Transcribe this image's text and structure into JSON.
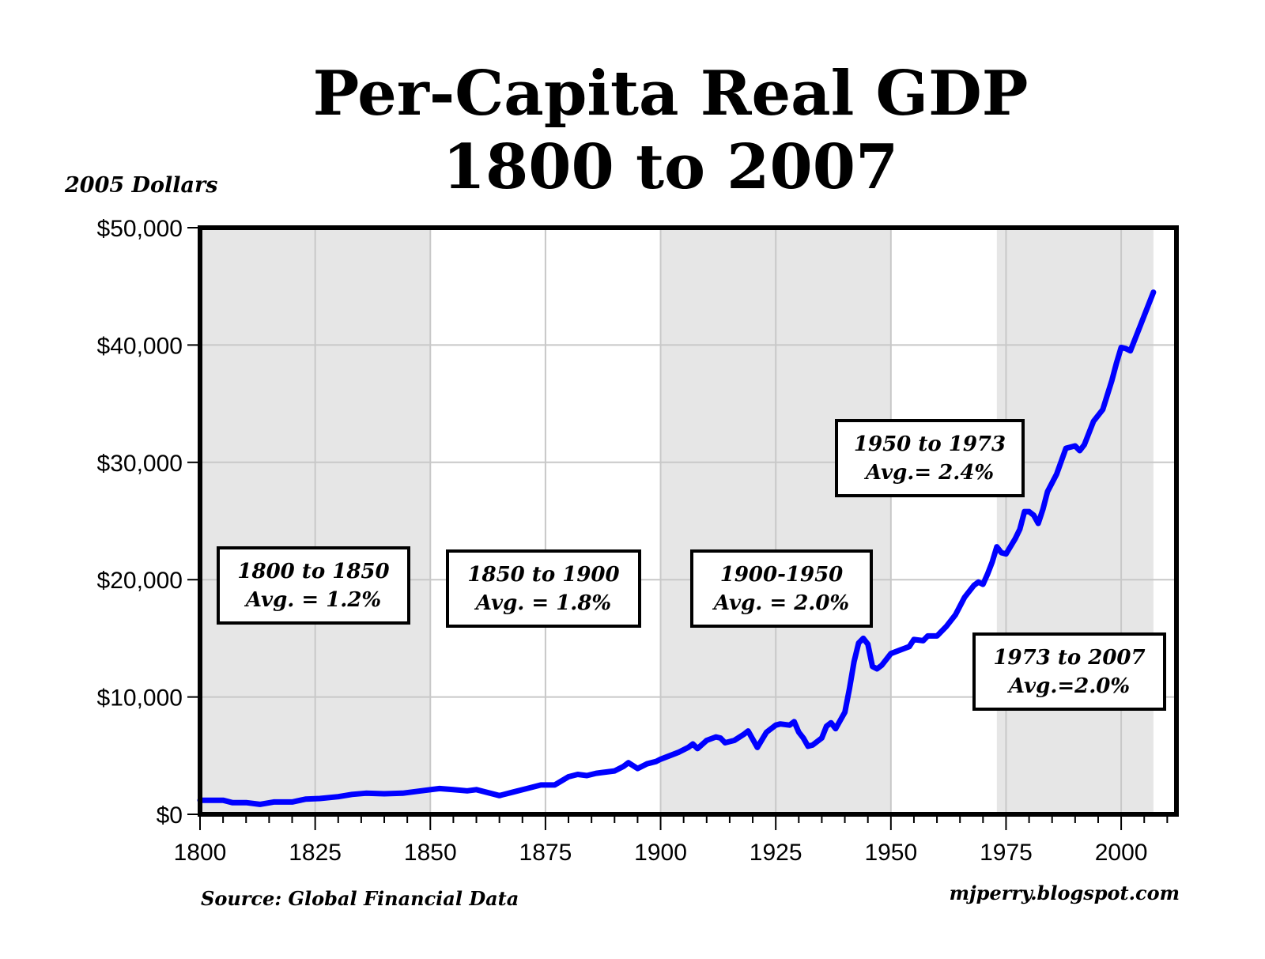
{
  "chart_data": {
    "type": "line",
    "title": "Per-Capita Real GDP",
    "subtitle": "1800 to 2007",
    "ylabel": "2005 Dollars",
    "xlabel": "",
    "xlim": [
      1800,
      2012
    ],
    "ylim": [
      0,
      50000
    ],
    "x_ticks": [
      1800,
      1825,
      1850,
      1875,
      1900,
      1925,
      1950,
      1975,
      2000
    ],
    "y_ticks": [
      0,
      10000,
      20000,
      30000,
      40000,
      50000
    ],
    "y_tick_labels": [
      "$0",
      "$10,000",
      "$20,000",
      "$30,000",
      "$40,000",
      "$50,000"
    ],
    "grid": true,
    "line_color": "#0000ff",
    "shade_color": "#e6e6e6",
    "shaded_periods": [
      [
        1800,
        1850
      ],
      [
        1900,
        1950
      ],
      [
        1973,
        2007
      ]
    ],
    "series": [
      {
        "x": [
          1800,
          1805,
          1807,
          1810,
          1813,
          1816,
          1820,
          1823,
          1826,
          1830,
          1833,
          1836,
          1840,
          1844,
          1848,
          1852,
          1855,
          1858,
          1860,
          1862,
          1865,
          1868,
          1871,
          1874,
          1877,
          1880,
          1882,
          1884,
          1886,
          1888,
          1890,
          1892,
          1893,
          1895,
          1897,
          1899,
          1900,
          1902,
          1904,
          1906,
          1907,
          1908,
          1910,
          1912,
          1913,
          1914,
          1916,
          1918,
          1919,
          1921,
          1923,
          1925,
          1926,
          1928,
          1929,
          1930,
          1931,
          1932,
          1933,
          1935,
          1936,
          1937,
          1938,
          1939,
          1940,
          1941,
          1942,
          1943,
          1944,
          1945,
          1946,
          1947,
          1948,
          1950,
          1952,
          1954,
          1955,
          1957,
          1958,
          1960,
          1962,
          1964,
          1966,
          1968,
          1969,
          1970,
          1971,
          1972,
          1973,
          1974,
          1975,
          1977,
          1978,
          1979,
          1980,
          1981,
          1982,
          1983,
          1984,
          1986,
          1988,
          1990,
          1991,
          1992,
          1994,
          1996,
          1998,
          1999,
          2000,
          2001,
          2002,
          2004,
          2006,
          2007
        ],
        "values": [
          1200,
          1200,
          1000,
          1000,
          850,
          1050,
          1050,
          1300,
          1350,
          1500,
          1700,
          1800,
          1750,
          1800,
          2000,
          2200,
          2100,
          2000,
          2100,
          1900,
          1600,
          1900,
          2200,
          2500,
          2500,
          3200,
          3400,
          3300,
          3500,
          3600,
          3700,
          4100,
          4400,
          3900,
          4300,
          4500,
          4700,
          5000,
          5300,
          5700,
          6000,
          5600,
          6300,
          6600,
          6500,
          6100,
          6300,
          6800,
          7100,
          5700,
          7000,
          7600,
          7700,
          7600,
          7900,
          7000,
          6500,
          5800,
          5900,
          6500,
          7500,
          7800,
          7300,
          8000,
          8700,
          10700,
          13000,
          14600,
          15000,
          14500,
          12600,
          12400,
          12700,
          13700,
          14000,
          14300,
          14900,
          14800,
          15200,
          15200,
          16000,
          17000,
          18500,
          19500,
          19800,
          19600,
          20500,
          21500,
          22800,
          22300,
          22200,
          23500,
          24300,
          25800,
          25800,
          25500,
          24800,
          26000,
          27500,
          29000,
          31200,
          31400,
          31000,
          31500,
          33500,
          34500,
          37000,
          38500,
          39800,
          39700,
          39500,
          41500,
          43500,
          44500
        ]
      }
    ],
    "annotations": [
      {
        "line1": "1800 to 1850",
        "line2": "Avg. = 1.2%"
      },
      {
        "line1": "1850 to 1900",
        "line2": "Avg. = 1.8%"
      },
      {
        "line1": "1900-1950",
        "line2": "Avg. = 2.0%"
      },
      {
        "line1": "1950 to 1973",
        "line2": "Avg.= 2.4%"
      },
      {
        "line1": "1973 to 2007",
        "line2": "Avg.=2.0%"
      }
    ],
    "source": "Source: Global Financial Data",
    "credit": "mjperry.blogspot.com"
  }
}
